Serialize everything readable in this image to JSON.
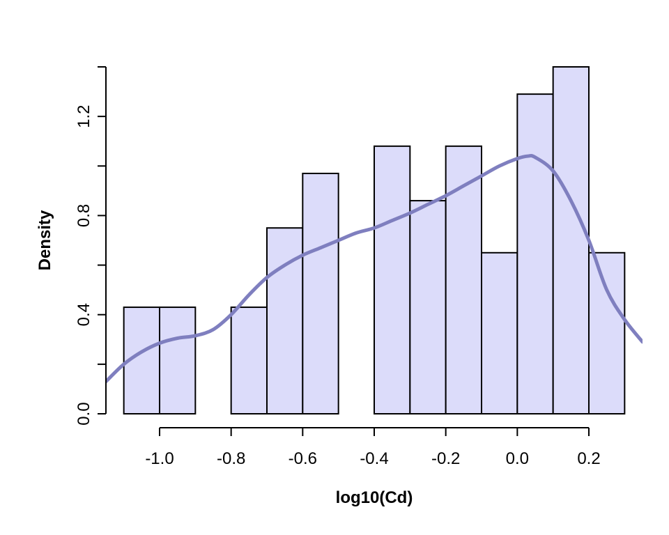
{
  "chart_data": {
    "type": "bar",
    "subtype": "histogram with density curve",
    "title": "",
    "xlabel": "log10(Cd)",
    "ylabel": "Density",
    "xlim": [
      -1.15,
      0.35
    ],
    "ylim": [
      0,
      1.4
    ],
    "x_ticks": [
      -1.0,
      -0.8,
      -0.6,
      -0.4,
      -0.2,
      0.0,
      0.2
    ],
    "x_tick_labels": [
      "-1.0",
      "-0.8",
      "-0.6",
      "-0.4",
      "-0.2",
      "0.0",
      "0.2"
    ],
    "y_ticks": [
      0.0,
      0.4,
      0.8,
      1.2
    ],
    "y_tick_labels": [
      "0.0",
      "0.4",
      "0.8",
      "1.2"
    ],
    "y_minor_ticks": [
      0.2,
      0.6,
      1.0,
      1.4
    ],
    "grid": false,
    "bin_width": 0.1,
    "bins": [
      {
        "start": -1.1,
        "end": -1.0,
        "density": 0.43
      },
      {
        "start": -1.0,
        "end": -0.9,
        "density": 0.43
      },
      {
        "start": -0.9,
        "end": -0.8,
        "density": 0.0
      },
      {
        "start": -0.8,
        "end": -0.7,
        "density": 0.43
      },
      {
        "start": -0.7,
        "end": -0.6,
        "density": 0.75
      },
      {
        "start": -0.6,
        "end": -0.5,
        "density": 0.97
      },
      {
        "start": -0.5,
        "end": -0.4,
        "density": 0.0
      },
      {
        "start": -0.4,
        "end": -0.3,
        "density": 1.08
      },
      {
        "start": -0.3,
        "end": -0.2,
        "density": 0.86
      },
      {
        "start": -0.2,
        "end": -0.1,
        "density": 1.08
      },
      {
        "start": -0.1,
        "end": 0.0,
        "density": 0.65
      },
      {
        "start": 0.0,
        "end": 0.1,
        "density": 1.29
      },
      {
        "start": 0.1,
        "end": 0.2,
        "density": 1.4
      },
      {
        "start": 0.2,
        "end": 0.3,
        "density": 0.65
      }
    ],
    "density_curve": {
      "x": [
        -1.15,
        -1.1,
        -1.05,
        -1.0,
        -0.95,
        -0.9,
        -0.85,
        -0.8,
        -0.75,
        -0.7,
        -0.65,
        -0.6,
        -0.55,
        -0.5,
        -0.45,
        -0.4,
        -0.35,
        -0.3,
        -0.25,
        -0.2,
        -0.15,
        -0.1,
        -0.05,
        0.0,
        0.03,
        0.05,
        0.1,
        0.15,
        0.2,
        0.25,
        0.3,
        0.35
      ],
      "y": [
        0.13,
        0.2,
        0.25,
        0.285,
        0.305,
        0.315,
        0.34,
        0.4,
        0.48,
        0.55,
        0.6,
        0.64,
        0.67,
        0.7,
        0.73,
        0.75,
        0.78,
        0.81,
        0.845,
        0.88,
        0.92,
        0.96,
        1.0,
        1.03,
        1.04,
        1.035,
        0.98,
        0.86,
        0.7,
        0.5,
        0.38,
        0.29
      ]
    },
    "colors": {
      "bar_fill": "#dcdcfa",
      "bar_stroke": "#000000",
      "curve": "#7f7fbf"
    }
  }
}
